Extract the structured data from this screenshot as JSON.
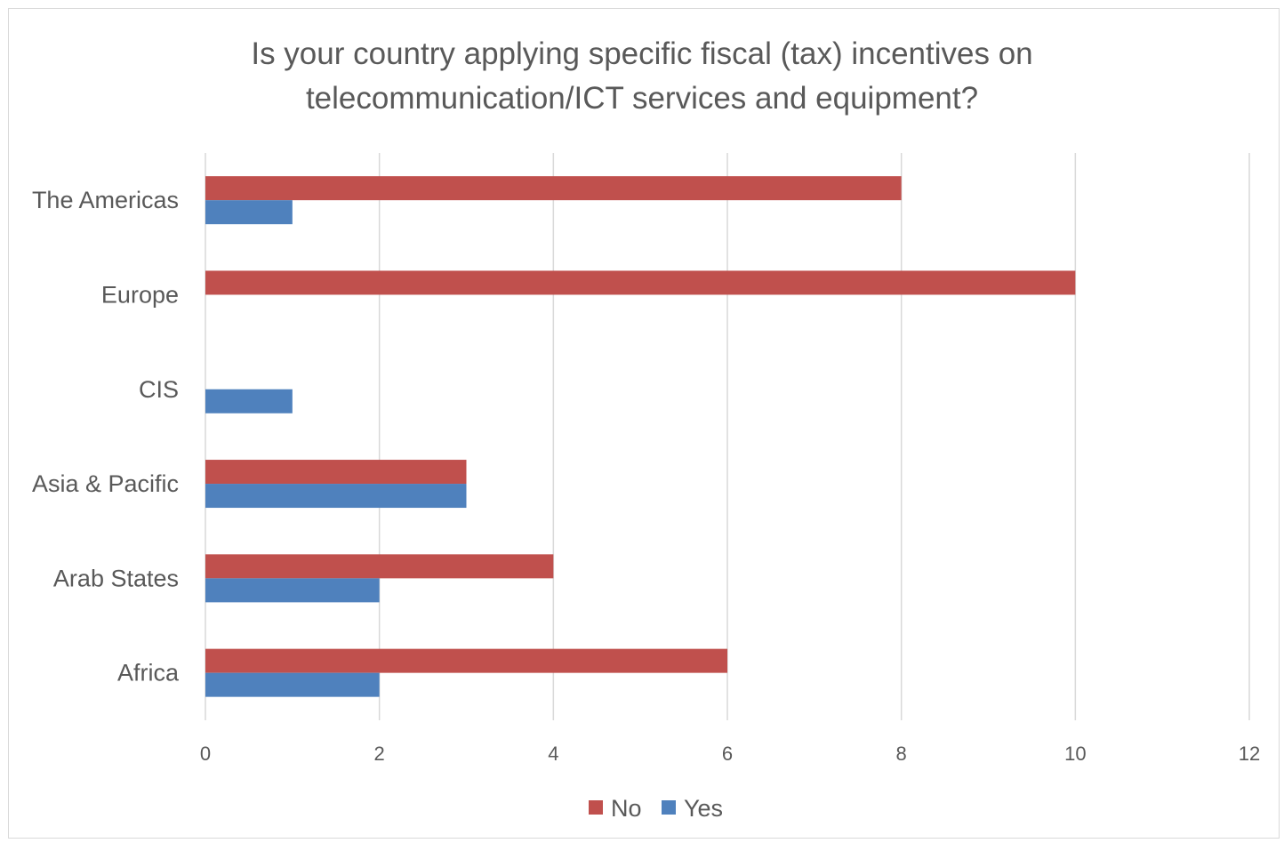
{
  "chart_data": {
    "type": "bar",
    "orientation": "horizontal",
    "title_lines": [
      "Is your country applying specific fiscal (tax) incentives on",
      "telecommunication/ICT services and equipment?"
    ],
    "categories": [
      "The Americas",
      "Europe",
      "CIS",
      "Asia & Pacific",
      "Arab States",
      "Africa"
    ],
    "series": [
      {
        "name": "No",
        "color": "#c0504d",
        "values": [
          8,
          10,
          0,
          3,
          4,
          6
        ]
      },
      {
        "name": "Yes",
        "color": "#4f81bd",
        "values": [
          1,
          0,
          1,
          3,
          2,
          2
        ]
      }
    ],
    "xlim": [
      0,
      12
    ],
    "xticks": [
      0,
      2,
      4,
      6,
      8,
      10,
      12
    ],
    "grid": "vertical",
    "legend_position": "bottom"
  }
}
